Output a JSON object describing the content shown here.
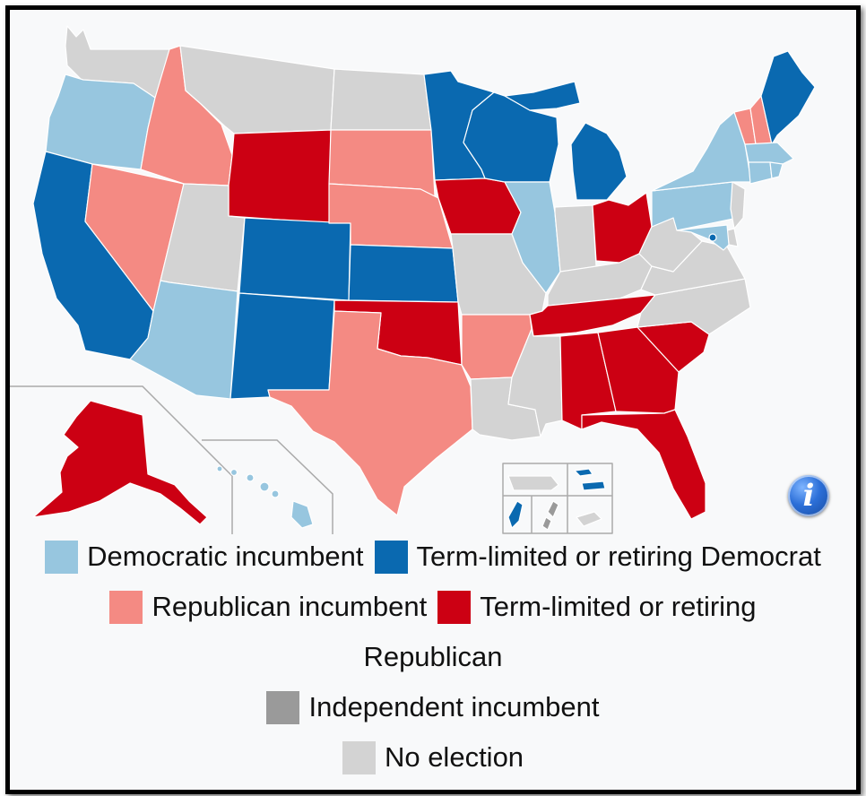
{
  "colors": {
    "dem_incumbent": "#97c6df",
    "dem_open": "#0a69b0",
    "rep_incumbent": "#f48a83",
    "rep_open": "#cc0013",
    "ind_incumbent": "#9a9a9a",
    "no_election": "#d3d3d3"
  },
  "states": {
    "WA": "no_election",
    "OR": "dem_incumbent",
    "CA": "dem_open",
    "NV": "rep_incumbent",
    "ID": "rep_incumbent",
    "MT": "no_election",
    "WY": "rep_open",
    "UT": "no_election",
    "AZ": "dem_incumbent",
    "CO": "dem_open",
    "NM": "dem_open",
    "ND": "no_election",
    "SD": "rep_incumbent",
    "NE": "rep_incumbent",
    "KS": "dem_open",
    "OK": "rep_open",
    "TX": "rep_incumbent",
    "MN": "dem_open",
    "IA": "rep_open",
    "MO": "no_election",
    "AR": "rep_incumbent",
    "LA": "no_election",
    "WI": "dem_open",
    "IL": "dem_incumbent",
    "MI": "dem_open",
    "IN": "no_election",
    "OH": "rep_open",
    "KY": "no_election",
    "TN": "rep_open",
    "MS": "no_election",
    "AL": "rep_open",
    "GA": "rep_open",
    "FL": "rep_open",
    "SC": "rep_open",
    "NC": "no_election",
    "VA": "no_election",
    "WV": "no_election",
    "PA": "dem_incumbent",
    "NY": "dem_incumbent",
    "VT": "rep_incumbent",
    "NH": "rep_incumbent",
    "ME": "dem_open",
    "MA": "dem_incumbent",
    "CT": "dem_incumbent",
    "RI": "dem_incumbent",
    "NJ": "no_election",
    "DE": "no_election",
    "MD": "dem_incumbent",
    "DC": "dem_open",
    "AK": "rep_open",
    "HI": "dem_incumbent",
    "PR": "no_election",
    "VI": "dem_open",
    "GU": "dem_open",
    "MP": "ind_incumbent",
    "AS": "no_election"
  },
  "legend": {
    "dem_incumbent": "Democratic incumbent",
    "dem_open": "Term-limited or retiring Democrat",
    "rep_incumbent": "Republican incumbent",
    "rep_open_line1": "Term-limited or retiring",
    "rep_open_line2": "Republican",
    "ind_incumbent": "Independent incumbent",
    "no_election": "No election"
  }
}
